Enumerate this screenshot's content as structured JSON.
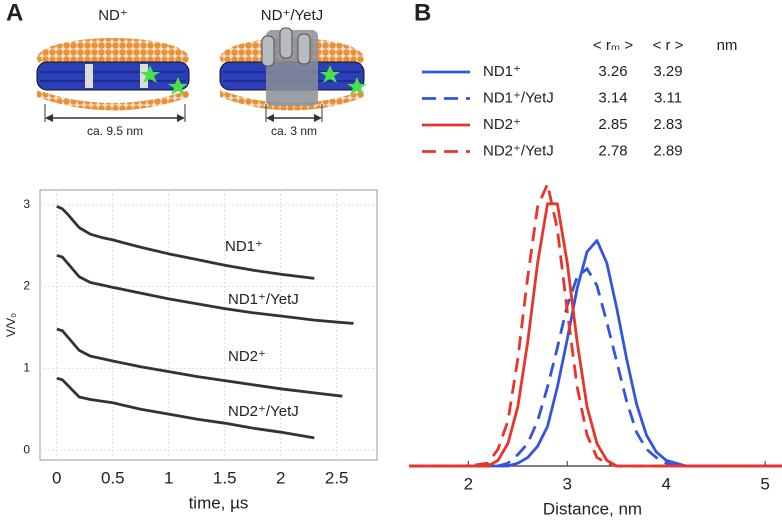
{
  "panels": {
    "a_label": "A",
    "b_label": "B"
  },
  "illustrations": [
    {
      "title": "ND⁺",
      "scale_label": "ca. 9.5 nm"
    },
    {
      "title": "ND⁺/YetJ",
      "scale_label": "ca. 3 nm"
    }
  ],
  "chart_data": [
    {
      "type": "line",
      "xlabel": "time, µs",
      "ylabel": "V/V₀",
      "x": [
        0,
        0.05,
        0.1,
        0.2,
        0.3,
        0.4,
        0.5,
        0.75,
        1.0,
        1.25,
        1.5,
        1.75,
        2.0,
        2.3,
        2.55,
        2.65
      ],
      "series": [
        {
          "name": "ND1⁺",
          "color": "#333333",
          "values": [
            2.98,
            2.95,
            2.88,
            2.72,
            2.64,
            2.6,
            2.57,
            2.48,
            2.4,
            2.33,
            2.26,
            2.2,
            2.15,
            2.1,
            null,
            null
          ]
        },
        {
          "name": "ND1⁺/YetJ",
          "color": "#333333",
          "values": [
            2.38,
            2.36,
            2.28,
            2.12,
            2.05,
            2.02,
            1.99,
            1.92,
            1.85,
            1.79,
            1.73,
            1.68,
            1.64,
            1.59,
            1.56,
            1.55
          ]
        },
        {
          "name": "ND2⁺",
          "color": "#333333",
          "values": [
            1.48,
            1.46,
            1.38,
            1.22,
            1.15,
            1.12,
            1.09,
            1.02,
            0.96,
            0.9,
            0.85,
            0.8,
            0.75,
            0.7,
            0.66,
            null
          ]
        },
        {
          "name": "ND2⁺/YetJ",
          "color": "#333333",
          "values": [
            0.88,
            0.86,
            0.79,
            0.65,
            0.62,
            0.6,
            0.58,
            0.5,
            0.44,
            0.38,
            0.33,
            0.27,
            0.22,
            0.15,
            null,
            null
          ]
        }
      ],
      "xlim": [
        -0.15,
        2.86
      ],
      "ylim": [
        -0.12,
        3.18
      ],
      "xticks": [
        0,
        0.5,
        1,
        1.5,
        2,
        2.5
      ],
      "yticks": [
        0,
        1,
        2,
        3
      ],
      "grid": true
    },
    {
      "type": "line",
      "xlabel": "Distance, nm",
      "table_headers": [
        "< rₘ >",
        "< r >",
        "nm"
      ],
      "x": [
        1.4,
        2.0,
        2.2,
        2.3,
        2.4,
        2.5,
        2.6,
        2.7,
        2.8,
        2.9,
        3.0,
        3.1,
        3.2,
        3.3,
        3.4,
        3.5,
        3.6,
        3.7,
        3.8,
        3.9,
        4.0,
        4.1,
        4.2,
        4.6,
        5.2
      ],
      "series": [
        {
          "name": "ND1⁺",
          "color": "#3355dd",
          "dashed": false,
          "rm": 3.26,
          "r": 3.29,
          "values": [
            0,
            0,
            0,
            0,
            0,
            0.01,
            0.03,
            0.07,
            0.14,
            0.28,
            0.45,
            0.63,
            0.76,
            0.8,
            0.72,
            0.56,
            0.38,
            0.22,
            0.11,
            0.05,
            0.02,
            0.01,
            0,
            0,
            0
          ]
        },
        {
          "name": "ND1⁺/YetJ",
          "color": "#3355dd",
          "dashed": true,
          "rm": 3.14,
          "r": 3.11,
          "values": [
            0,
            0,
            0,
            0,
            0.01,
            0.04,
            0.08,
            0.16,
            0.28,
            0.42,
            0.57,
            0.67,
            0.7,
            0.64,
            0.51,
            0.37,
            0.23,
            0.12,
            0.06,
            0.03,
            0.01,
            0,
            0,
            0,
            0
          ]
        },
        {
          "name": "ND2⁺",
          "color": "#e8352a",
          "dashed": false,
          "rm": 2.85,
          "r": 2.83,
          "values": [
            0,
            0,
            0,
            0.02,
            0.08,
            0.21,
            0.44,
            0.72,
            0.93,
            0.93,
            0.72,
            0.44,
            0.21,
            0.08,
            0.02,
            0,
            0,
            0,
            0,
            0,
            0,
            0,
            0,
            0,
            0
          ]
        },
        {
          "name": "ND2⁺/YetJ",
          "color": "#e8352a",
          "dashed": true,
          "rm": 2.78,
          "r": 2.89,
          "values": [
            0,
            0,
            0.01,
            0.06,
            0.16,
            0.38,
            0.67,
            0.92,
            1.0,
            0.84,
            0.55,
            0.28,
            0.11,
            0.03,
            0.01,
            0,
            0,
            0,
            0,
            0,
            0,
            0,
            0,
            0,
            0
          ]
        }
      ],
      "xlim": [
        1.41,
        5.1
      ],
      "ylim": [
        0,
        1.05
      ],
      "xticks": [
        2,
        3,
        4,
        5
      ],
      "grid": false
    }
  ]
}
